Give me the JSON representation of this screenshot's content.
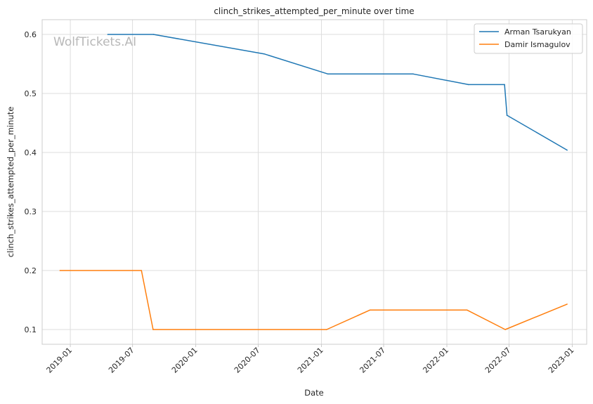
{
  "chart_data": {
    "type": "line",
    "title": "clinch_strikes_attempted_per_minute over time",
    "xlabel": "Date",
    "ylabel": "clinch_strikes_attempted_per_minute",
    "watermark": "WolfTickets.AI",
    "xlim": [
      "2018-10-11",
      "2023-02-12"
    ],
    "ylim": [
      0.075,
      0.625
    ],
    "xticks": [
      "2019-01",
      "2019-07",
      "2020-01",
      "2020-07",
      "2021-01",
      "2021-07",
      "2022-01",
      "2022-07",
      "2023-01"
    ],
    "yticks": [
      0.1,
      0.2,
      0.3,
      0.4,
      0.5,
      0.6
    ],
    "grid": true,
    "legend_position": "top-right",
    "series": [
      {
        "name": "Arman Tsarukyan",
        "color": "#1f77b4",
        "points": [
          {
            "x": "2019-04-20",
            "y": 0.6
          },
          {
            "x": "2019-08-31",
            "y": 0.6
          },
          {
            "x": "2020-07-18",
            "y": 0.567
          },
          {
            "x": "2021-01-20",
            "y": 0.533
          },
          {
            "x": "2021-09-25",
            "y": 0.533
          },
          {
            "x": "2022-03-05",
            "y": 0.515
          },
          {
            "x": "2022-06-18",
            "y": 0.515
          },
          {
            "x": "2022-06-25",
            "y": 0.463
          },
          {
            "x": "2022-12-17",
            "y": 0.404
          }
        ]
      },
      {
        "name": "Damir Ismagulov",
        "color": "#ff7f0e",
        "points": [
          {
            "x": "2018-12-02",
            "y": 0.2
          },
          {
            "x": "2019-07-27",
            "y": 0.2
          },
          {
            "x": "2019-08-30",
            "y": 0.1
          },
          {
            "x": "2021-01-16",
            "y": 0.1
          },
          {
            "x": "2021-05-22",
            "y": 0.133
          },
          {
            "x": "2022-03-01",
            "y": 0.133
          },
          {
            "x": "2022-06-20",
            "y": 0.1
          },
          {
            "x": "2022-12-17",
            "y": 0.143
          }
        ]
      }
    ]
  }
}
